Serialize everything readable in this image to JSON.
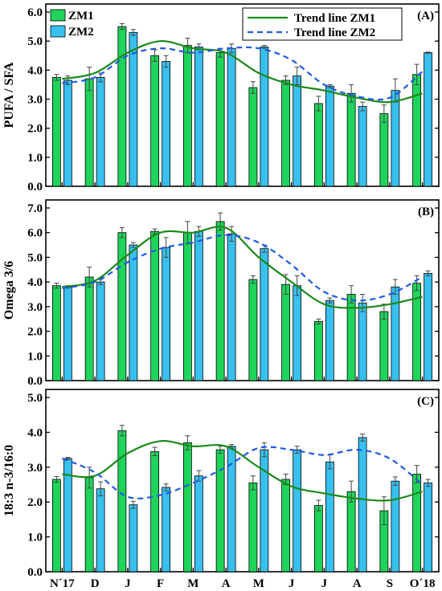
{
  "colors": {
    "zm1_bar": "#1fd45a",
    "zm2_bar": "#38c0ee",
    "zm1_trend": "#1a8a1a",
    "zm2_trend": "#1f5be6"
  },
  "chart_data": {
    "type": "bar",
    "categories": [
      "N´17",
      "D",
      "J",
      "F",
      "M",
      "A",
      "M",
      "J",
      "J",
      "A",
      "S",
      "O´18"
    ],
    "legend": {
      "bars": [
        "ZM1",
        "ZM2"
      ],
      "lines": [
        "Trend line ZM1",
        "Trend line ZM2"
      ]
    },
    "panels": [
      {
        "label": "(A)",
        "ylabel": "PUFA / SFA",
        "ylim": [
          0,
          6
        ],
        "yticks": [
          "0.0",
          "1.0",
          "2.0",
          "3.0",
          "4.0",
          "5.0",
          "6.0"
        ],
        "series": [
          {
            "name": "ZM1",
            "values": [
              3.75,
              3.7,
              5.5,
              4.5,
              4.85,
              4.6,
              3.4,
              3.65,
              2.85,
              3.2,
              2.5,
              3.85
            ],
            "errors": [
              0.1,
              0.4,
              0.1,
              0.2,
              0.25,
              0.15,
              0.2,
              0.15,
              0.25,
              0.3,
              0.3,
              0.35
            ]
          },
          {
            "name": "ZM2",
            "values": [
              3.65,
              3.75,
              5.3,
              4.3,
              4.8,
              4.75,
              4.8,
              3.8,
              3.45,
              2.75,
              3.3,
              4.6
            ],
            "errors": [
              0.15,
              0.15,
              0.1,
              0.2,
              0.1,
              0.15,
              0.05,
              0.3,
              0.05,
              0.15,
              0.4,
              0.02
            ]
          },
          {
            "name": "Trend line ZM1",
            "values": [
              3.7,
              3.9,
              4.6,
              5.0,
              4.75,
              4.6,
              3.9,
              3.5,
              3.3,
              3.05,
              2.9,
              3.2
            ]
          },
          {
            "name": "Trend line ZM2",
            "values": [
              3.55,
              3.75,
              4.5,
              4.75,
              4.6,
              4.75,
              4.75,
              4.35,
              3.5,
              3.1,
              3.05,
              3.95
            ]
          }
        ]
      },
      {
        "label": "(B)",
        "ylabel": "Omega 3/6",
        "ylim": [
          0,
          7
        ],
        "yticks": [
          "0.0",
          "1.0",
          "2.0",
          "3.0",
          "4.0",
          "5.0",
          "6.0",
          "7.0"
        ],
        "series": [
          {
            "name": "ZM1",
            "values": [
              3.85,
              4.2,
              6.0,
              6.05,
              6.0,
              6.45,
              4.1,
              3.9,
              2.4,
              3.5,
              2.8,
              3.95
            ],
            "errors": [
              0.1,
              0.4,
              0.2,
              0.1,
              0.45,
              0.35,
              0.15,
              0.4,
              0.1,
              0.35,
              0.3,
              0.3
            ]
          },
          {
            "name": "ZM2",
            "values": [
              3.8,
              4.0,
              5.5,
              5.4,
              6.05,
              5.95,
              5.35,
              3.85,
              3.25,
              3.15,
              3.8,
              4.35
            ],
            "errors": [
              0.05,
              0.1,
              0.1,
              0.4,
              0.2,
              0.3,
              0.15,
              0.4,
              0.1,
              0.35,
              0.3,
              0.1
            ]
          },
          {
            "name": "Trend line ZM1",
            "values": [
              3.8,
              4.05,
              5.1,
              6.0,
              6.0,
              6.2,
              5.0,
              4.0,
              3.1,
              2.95,
              3.1,
              3.4
            ]
          },
          {
            "name": "Trend line ZM2",
            "values": [
              3.75,
              4.0,
              4.8,
              5.35,
              5.6,
              5.9,
              5.6,
              4.7,
              3.6,
              3.25,
              3.5,
              4.2
            ]
          }
        ]
      },
      {
        "label": "(C)",
        "ylabel": "18:3 n-3/16:0",
        "ylim": [
          0,
          5
        ],
        "yticks": [
          "0.0",
          "1.0",
          "2.0",
          "3.0",
          "4.0",
          "5.0"
        ],
        "series": [
          {
            "name": "ZM1",
            "values": [
              2.65,
              2.7,
              4.05,
              3.45,
              3.7,
              3.5,
              2.55,
              2.65,
              1.9,
              2.3,
              1.75,
              2.8
            ],
            "errors": [
              0.08,
              0.3,
              0.15,
              0.12,
              0.2,
              0.1,
              0.2,
              0.15,
              0.15,
              0.3,
              0.4,
              0.25
            ]
          },
          {
            "name": "ZM2",
            "values": [
              3.25,
              2.38,
              1.92,
              2.42,
              2.75,
              3.6,
              3.5,
              3.5,
              3.15,
              3.85,
              2.6,
              2.55
            ],
            "errors": [
              0.03,
              0.2,
              0.1,
              0.1,
              0.15,
              0.05,
              0.2,
              0.1,
              0.2,
              0.1,
              0.12,
              0.1
            ]
          },
          {
            "name": "Trend line ZM1",
            "values": [
              2.8,
              2.75,
              3.4,
              3.75,
              3.6,
              3.6,
              3.0,
              2.45,
              2.25,
              2.1,
              2.05,
              2.3
            ]
          },
          {
            "name": "Trend line ZM2",
            "values": [
              3.25,
              2.85,
              2.15,
              2.2,
              2.55,
              3.0,
              3.55,
              3.5,
              3.35,
              3.5,
              3.25,
              2.5
            ]
          }
        ]
      }
    ]
  }
}
